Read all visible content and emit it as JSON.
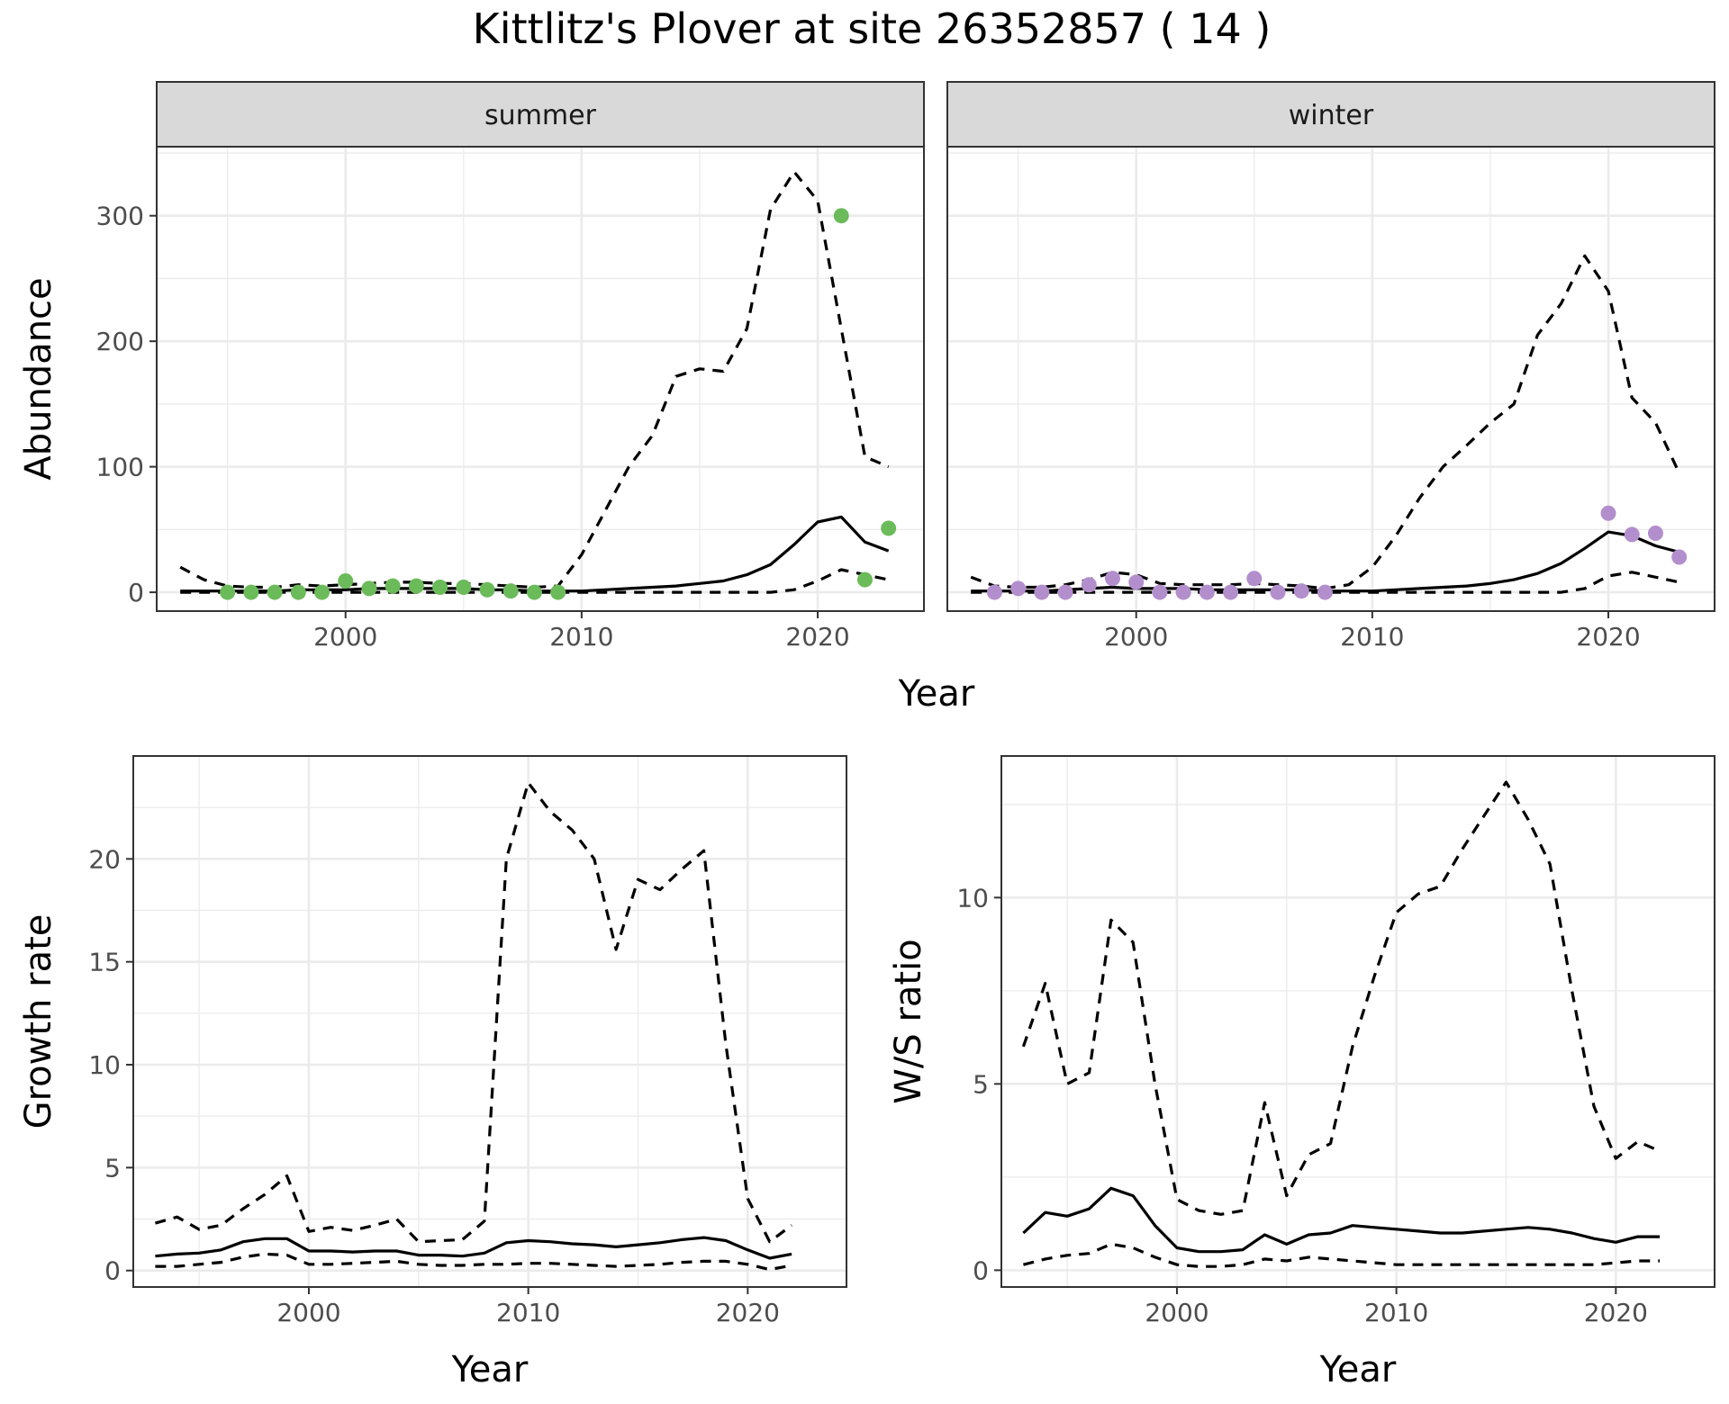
{
  "title": "Kittlitz's Plover at site 26352857 ( 14 )",
  "colors": {
    "summer_points": "#6BBB5A",
    "winter_points": "#B38ECC",
    "lines": "#000000"
  },
  "chart_data": [
    {
      "id": "summer",
      "type": "line",
      "facet_label": "summer",
      "xlabel": "",
      "ylabel": "Abundance",
      "xlim": [
        1992,
        2024.5
      ],
      "ylim": [
        -15,
        355
      ],
      "xticks": [
        2000,
        2010,
        2020
      ],
      "yticks": [
        0,
        100,
        200,
        300
      ],
      "grid": true,
      "point_color": "#6BBB5A",
      "points": {
        "x": [
          1995,
          1996,
          1997,
          1998,
          1999,
          2000,
          2001,
          2002,
          2003,
          2004,
          2005,
          2006,
          2007,
          2008,
          2009,
          2021,
          2022,
          2023
        ],
        "y": [
          0,
          0,
          0,
          0,
          0,
          9,
          3,
          5,
          5,
          4,
          4,
          2,
          1,
          0,
          0,
          300,
          10,
          51
        ]
      },
      "series": [
        {
          "style": "solid",
          "x": [
            1993,
            1994,
            1995,
            1996,
            1997,
            1998,
            1999,
            2000,
            2001,
            2002,
            2003,
            2004,
            2005,
            2006,
            2007,
            2008,
            2009,
            2010,
            2011,
            2012,
            2013,
            2014,
            2015,
            2016,
            2017,
            2018,
            2019,
            2020,
            2021,
            2022,
            2023
          ],
          "y": [
            1,
            1,
            1,
            1,
            1,
            2,
            2,
            2,
            3,
            3,
            3,
            3,
            3,
            2,
            2,
            1,
            1,
            1,
            2,
            3,
            4,
            5,
            7,
            9,
            14,
            22,
            38,
            56,
            60,
            40,
            33
          ]
        },
        {
          "style": "dashed",
          "x": [
            1993,
            1994,
            1995,
            1996,
            1997,
            1998,
            1999,
            2000,
            2001,
            2002,
            2003,
            2004,
            2005,
            2006,
            2007,
            2008,
            2009,
            2010,
            2011,
            2012,
            2013,
            2014,
            2015,
            2016,
            2017,
            2018,
            2019,
            2020,
            2021,
            2022,
            2023
          ],
          "y": [
            20,
            10,
            5,
            4,
            4,
            6,
            5,
            6,
            7,
            8,
            8,
            7,
            7,
            6,
            5,
            4,
            5,
            30,
            65,
            100,
            125,
            172,
            178,
            176,
            210,
            305,
            335,
            312,
            210,
            108,
            100
          ]
        },
        {
          "style": "dashed",
          "x": [
            1993,
            1994,
            1995,
            1996,
            1997,
            1998,
            1999,
            2000,
            2001,
            2002,
            2003,
            2004,
            2005,
            2006,
            2007,
            2008,
            2009,
            2010,
            2011,
            2012,
            2013,
            2014,
            2015,
            2016,
            2017,
            2018,
            2019,
            2020,
            2021,
            2022,
            2023
          ],
          "y": [
            0,
            0,
            0,
            0,
            0,
            0,
            0,
            0,
            0,
            0,
            0,
            0,
            0,
            0,
            0,
            0,
            0,
            0,
            0,
            0,
            0,
            0,
            0,
            0,
            0,
            0,
            2,
            9,
            18,
            14,
            10
          ]
        }
      ]
    },
    {
      "id": "winter",
      "type": "line",
      "facet_label": "winter",
      "xlabel": "",
      "ylabel": "",
      "xlim": [
        1992,
        2024.5
      ],
      "ylim": [
        -15,
        355
      ],
      "xticks": [
        2000,
        2010,
        2020
      ],
      "yticks": [
        0,
        100,
        200,
        300
      ],
      "grid": true,
      "point_color": "#B38ECC",
      "points": {
        "x": [
          1994,
          1995,
          1996,
          1997,
          1998,
          1999,
          2000,
          2001,
          2002,
          2003,
          2004,
          2005,
          2006,
          2007,
          2008,
          2020,
          2021,
          2022,
          2023
        ],
        "y": [
          0,
          3,
          0,
          0,
          6,
          11,
          8,
          0,
          0,
          0,
          0,
          11,
          0,
          1,
          0,
          63,
          46,
          47,
          28
        ]
      },
      "series": [
        {
          "style": "solid",
          "x": [
            1993,
            1994,
            1995,
            1996,
            1997,
            1998,
            1999,
            2000,
            2001,
            2002,
            2003,
            2004,
            2005,
            2006,
            2007,
            2008,
            2009,
            2010,
            2011,
            2012,
            2013,
            2014,
            2015,
            2016,
            2017,
            2018,
            2019,
            2020,
            2021,
            2022,
            2023
          ],
          "y": [
            1,
            1,
            1,
            1,
            2,
            3,
            4,
            3,
            3,
            3,
            2,
            2,
            2,
            2,
            2,
            1,
            1,
            1,
            2,
            3,
            4,
            5,
            7,
            10,
            15,
            23,
            35,
            48,
            45,
            37,
            32
          ]
        },
        {
          "style": "dashed",
          "x": [
            1993,
            1994,
            1995,
            1996,
            1997,
            1998,
            1999,
            2000,
            2001,
            2002,
            2003,
            2004,
            2005,
            2006,
            2007,
            2008,
            2009,
            2010,
            2011,
            2012,
            2013,
            2014,
            2015,
            2016,
            2017,
            2018,
            2019,
            2020,
            2021,
            2022,
            2023
          ],
          "y": [
            12,
            5,
            4,
            4,
            6,
            10,
            16,
            14,
            7,
            6,
            6,
            6,
            7,
            6,
            5,
            3,
            6,
            20,
            45,
            75,
            100,
            117,
            135,
            150,
            205,
            230,
            268,
            240,
            155,
            135,
            95
          ]
        },
        {
          "style": "dashed",
          "x": [
            1993,
            1994,
            1995,
            1996,
            1997,
            1998,
            1999,
            2000,
            2001,
            2002,
            2003,
            2004,
            2005,
            2006,
            2007,
            2008,
            2009,
            2010,
            2011,
            2012,
            2013,
            2014,
            2015,
            2016,
            2017,
            2018,
            2019,
            2020,
            2021,
            2022,
            2023
          ],
          "y": [
            0,
            0,
            0,
            0,
            0,
            0,
            0,
            0,
            0,
            0,
            0,
            0,
            0,
            0,
            0,
            0,
            0,
            0,
            0,
            0,
            0,
            0,
            0,
            0,
            0,
            0,
            3,
            13,
            16,
            12,
            8
          ]
        }
      ]
    },
    {
      "id": "growth",
      "type": "line",
      "xlabel": "Year",
      "ylabel": "Growth rate",
      "xlim": [
        1992,
        2024.5
      ],
      "ylim": [
        -0.8,
        25
      ],
      "xticks": [
        2000,
        2010,
        2020
      ],
      "yticks": [
        0,
        5,
        10,
        15,
        20
      ],
      "grid": true,
      "series": [
        {
          "style": "solid",
          "x": [
            1993,
            1994,
            1995,
            1996,
            1997,
            1998,
            1999,
            2000,
            2001,
            2002,
            2003,
            2004,
            2005,
            2006,
            2007,
            2008,
            2009,
            2010,
            2011,
            2012,
            2013,
            2014,
            2015,
            2016,
            2017,
            2018,
            2019,
            2020,
            2021,
            2022
          ],
          "y": [
            0.7,
            0.8,
            0.85,
            1.0,
            1.4,
            1.55,
            1.55,
            0.95,
            0.95,
            0.9,
            0.95,
            0.95,
            0.75,
            0.75,
            0.7,
            0.85,
            1.35,
            1.45,
            1.4,
            1.3,
            1.25,
            1.15,
            1.25,
            1.35,
            1.5,
            1.6,
            1.45,
            1.0,
            0.6,
            0.8
          ]
        },
        {
          "style": "dashed",
          "x": [
            1993,
            1994,
            1995,
            1996,
            1997,
            1998,
            1999,
            2000,
            2001,
            2002,
            2003,
            2004,
            2005,
            2006,
            2007,
            2008,
            2009,
            2010,
            2011,
            2012,
            2013,
            2014,
            2015,
            2016,
            2017,
            2018,
            2019,
            2020,
            2021,
            2022
          ],
          "y": [
            2.3,
            2.6,
            2.0,
            2.2,
            3.0,
            3.7,
            4.6,
            1.9,
            2.1,
            1.95,
            2.2,
            2.5,
            1.4,
            1.45,
            1.5,
            2.4,
            20,
            23.7,
            22.3,
            21.4,
            20,
            15.6,
            19,
            18.5,
            19.5,
            20.4,
            11,
            3.5,
            1.4,
            2.2
          ]
        },
        {
          "style": "dashed",
          "x": [
            1993,
            1994,
            1995,
            1996,
            1997,
            1998,
            1999,
            2000,
            2001,
            2002,
            2003,
            2004,
            2005,
            2006,
            2007,
            2008,
            2009,
            2010,
            2011,
            2012,
            2013,
            2014,
            2015,
            2016,
            2017,
            2018,
            2019,
            2020,
            2021,
            2022
          ],
          "y": [
            0.2,
            0.2,
            0.3,
            0.4,
            0.65,
            0.8,
            0.75,
            0.3,
            0.3,
            0.35,
            0.4,
            0.45,
            0.3,
            0.25,
            0.25,
            0.3,
            0.3,
            0.35,
            0.35,
            0.3,
            0.25,
            0.2,
            0.25,
            0.3,
            0.4,
            0.45,
            0.45,
            0.3,
            0.05,
            0.25
          ]
        }
      ]
    },
    {
      "id": "ws_ratio",
      "type": "line",
      "xlabel": "Year",
      "ylabel": "W/S ratio",
      "xlim": [
        1992,
        2024.5
      ],
      "ylim": [
        -0.45,
        13.8
      ],
      "xticks": [
        2000,
        2010,
        2020
      ],
      "yticks": [
        0,
        5,
        10
      ],
      "grid": true,
      "series": [
        {
          "style": "solid",
          "x": [
            1993,
            1994,
            1995,
            1996,
            1997,
            1998,
            1999,
            2000,
            2001,
            2002,
            2003,
            2004,
            2005,
            2006,
            2007,
            2008,
            2009,
            2010,
            2011,
            2012,
            2013,
            2014,
            2015,
            2016,
            2017,
            2018,
            2019,
            2020,
            2021,
            2022
          ],
          "y": [
            1.0,
            1.55,
            1.45,
            1.65,
            2.2,
            2.0,
            1.2,
            0.6,
            0.5,
            0.5,
            0.55,
            0.95,
            0.7,
            0.95,
            1.0,
            1.2,
            1.15,
            1.1,
            1.05,
            1.0,
            1.0,
            1.05,
            1.1,
            1.15,
            1.1,
            1.0,
            0.85,
            0.75,
            0.9,
            0.9
          ]
        },
        {
          "style": "dashed",
          "x": [
            1993,
            1994,
            1995,
            1996,
            1997,
            1998,
            1999,
            2000,
            2001,
            2002,
            2003,
            2004,
            2005,
            2006,
            2007,
            2008,
            2009,
            2010,
            2011,
            2012,
            2013,
            2014,
            2015,
            2016,
            2017,
            2018,
            2019,
            2020,
            2021,
            2022
          ],
          "y": [
            6.0,
            7.7,
            5.0,
            5.3,
            9.4,
            8.8,
            5.0,
            1.9,
            1.6,
            1.5,
            1.6,
            4.5,
            2.0,
            3.1,
            3.4,
            6.0,
            7.9,
            9.6,
            10.1,
            10.3,
            11.3,
            12.2,
            13.1,
            12.1,
            10.9,
            7.5,
            4.4,
            3.0,
            3.45,
            3.2
          ]
        },
        {
          "style": "dashed",
          "x": [
            1993,
            1994,
            1995,
            1996,
            1997,
            1998,
            1999,
            2000,
            2001,
            2002,
            2003,
            2004,
            2005,
            2006,
            2007,
            2008,
            2009,
            2010,
            2011,
            2012,
            2013,
            2014,
            2015,
            2016,
            2017,
            2018,
            2019,
            2020,
            2021,
            2022
          ],
          "y": [
            0.15,
            0.3,
            0.4,
            0.45,
            0.7,
            0.6,
            0.35,
            0.15,
            0.1,
            0.1,
            0.15,
            0.3,
            0.25,
            0.35,
            0.3,
            0.25,
            0.2,
            0.15,
            0.15,
            0.15,
            0.15,
            0.15,
            0.15,
            0.15,
            0.15,
            0.15,
            0.15,
            0.2,
            0.25,
            0.25
          ]
        }
      ]
    }
  ],
  "abundance_xlabel": "Year"
}
